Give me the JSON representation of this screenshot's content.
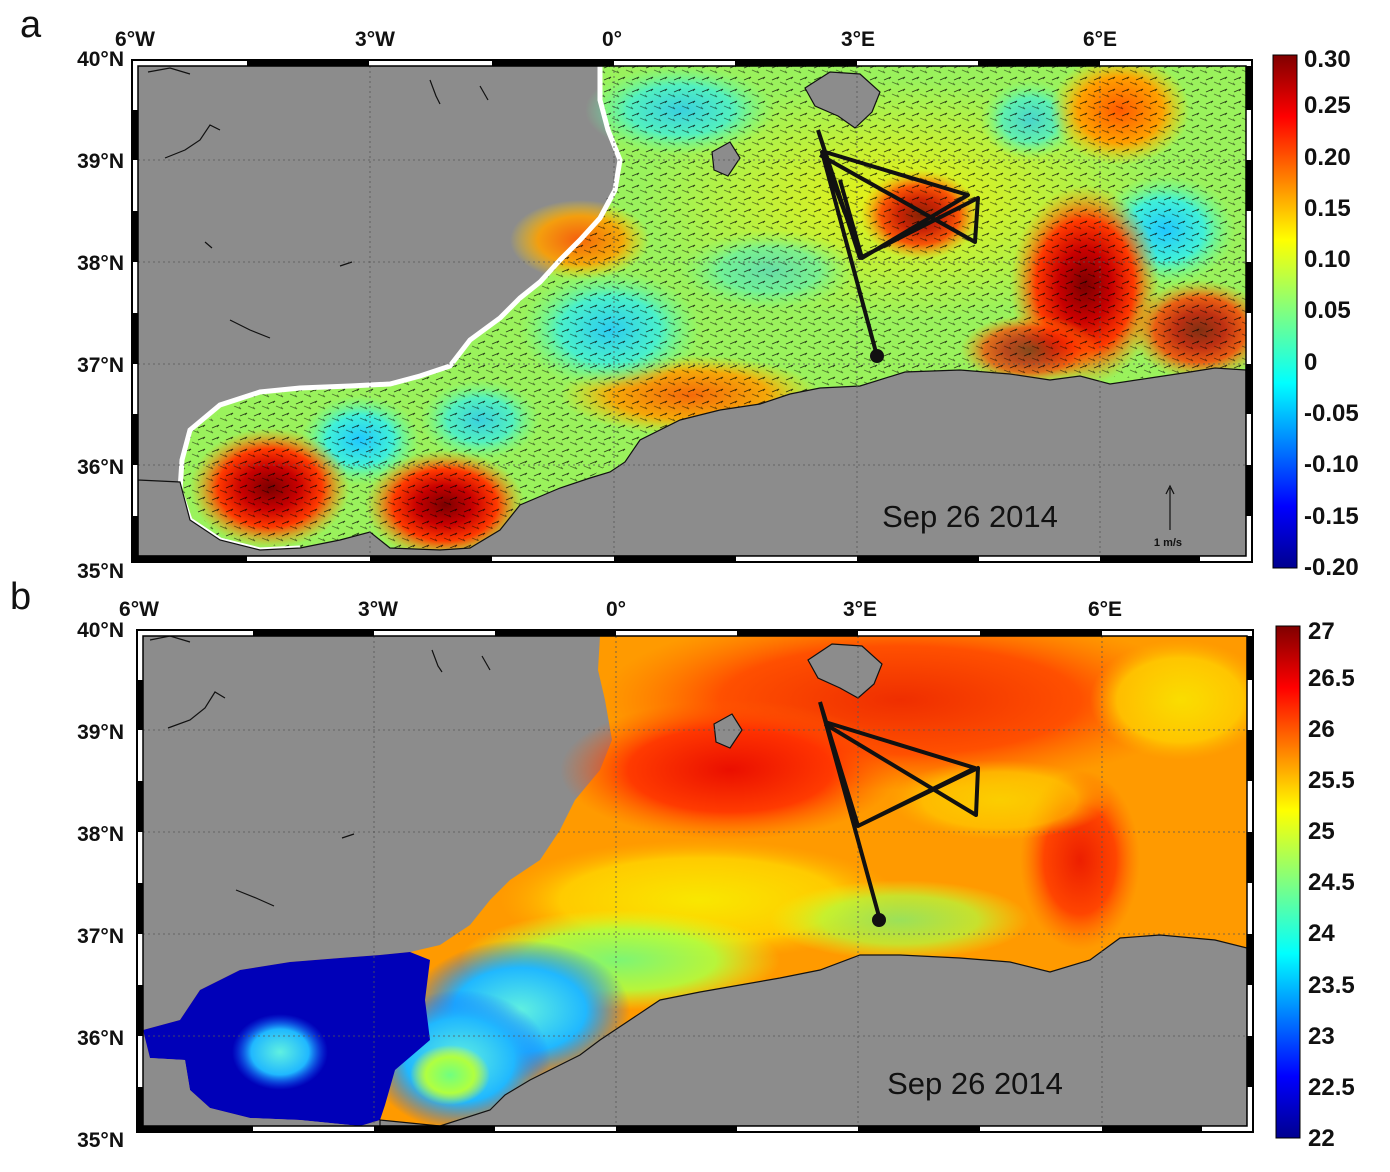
{
  "panels": [
    {
      "letter": "a",
      "date": "Sep 26 2014",
      "lon_labels": [
        "6°W",
        "3°W",
        "0°",
        "3°E",
        "6°E"
      ],
      "lat_labels": [
        "40°N",
        "39°N",
        "38°N",
        "37°N",
        "36°N",
        "35°N"
      ],
      "colorbar": {
        "ticks": [
          "0.30",
          "0.25",
          "0.20",
          "0.15",
          "0.10",
          "0.05",
          "0",
          "-0.05",
          "-0.10",
          "-0.15",
          "-0.20"
        ],
        "range": [
          -0.2,
          0.3
        ],
        "colormap": "jet"
      },
      "vector_scale": "1 m/s"
    },
    {
      "letter": "b",
      "date": "Sep 26 2014",
      "lon_labels": [
        "6°W",
        "3°W",
        "0°",
        "3°E",
        "6°E"
      ],
      "lat_labels": [
        "40°N",
        "39°N",
        "38°N",
        "37°N",
        "36°N",
        "35°N"
      ],
      "colorbar": {
        "ticks": [
          "27",
          "26.5",
          "26",
          "25.5",
          "25",
          "24.5",
          "24",
          "23.5",
          "23",
          "22.5",
          "22"
        ],
        "range": [
          22,
          27
        ],
        "colormap": "jet"
      }
    }
  ],
  "colors": {
    "land": "#8c8c8c",
    "track": "#111111",
    "frame": "#000000"
  }
}
